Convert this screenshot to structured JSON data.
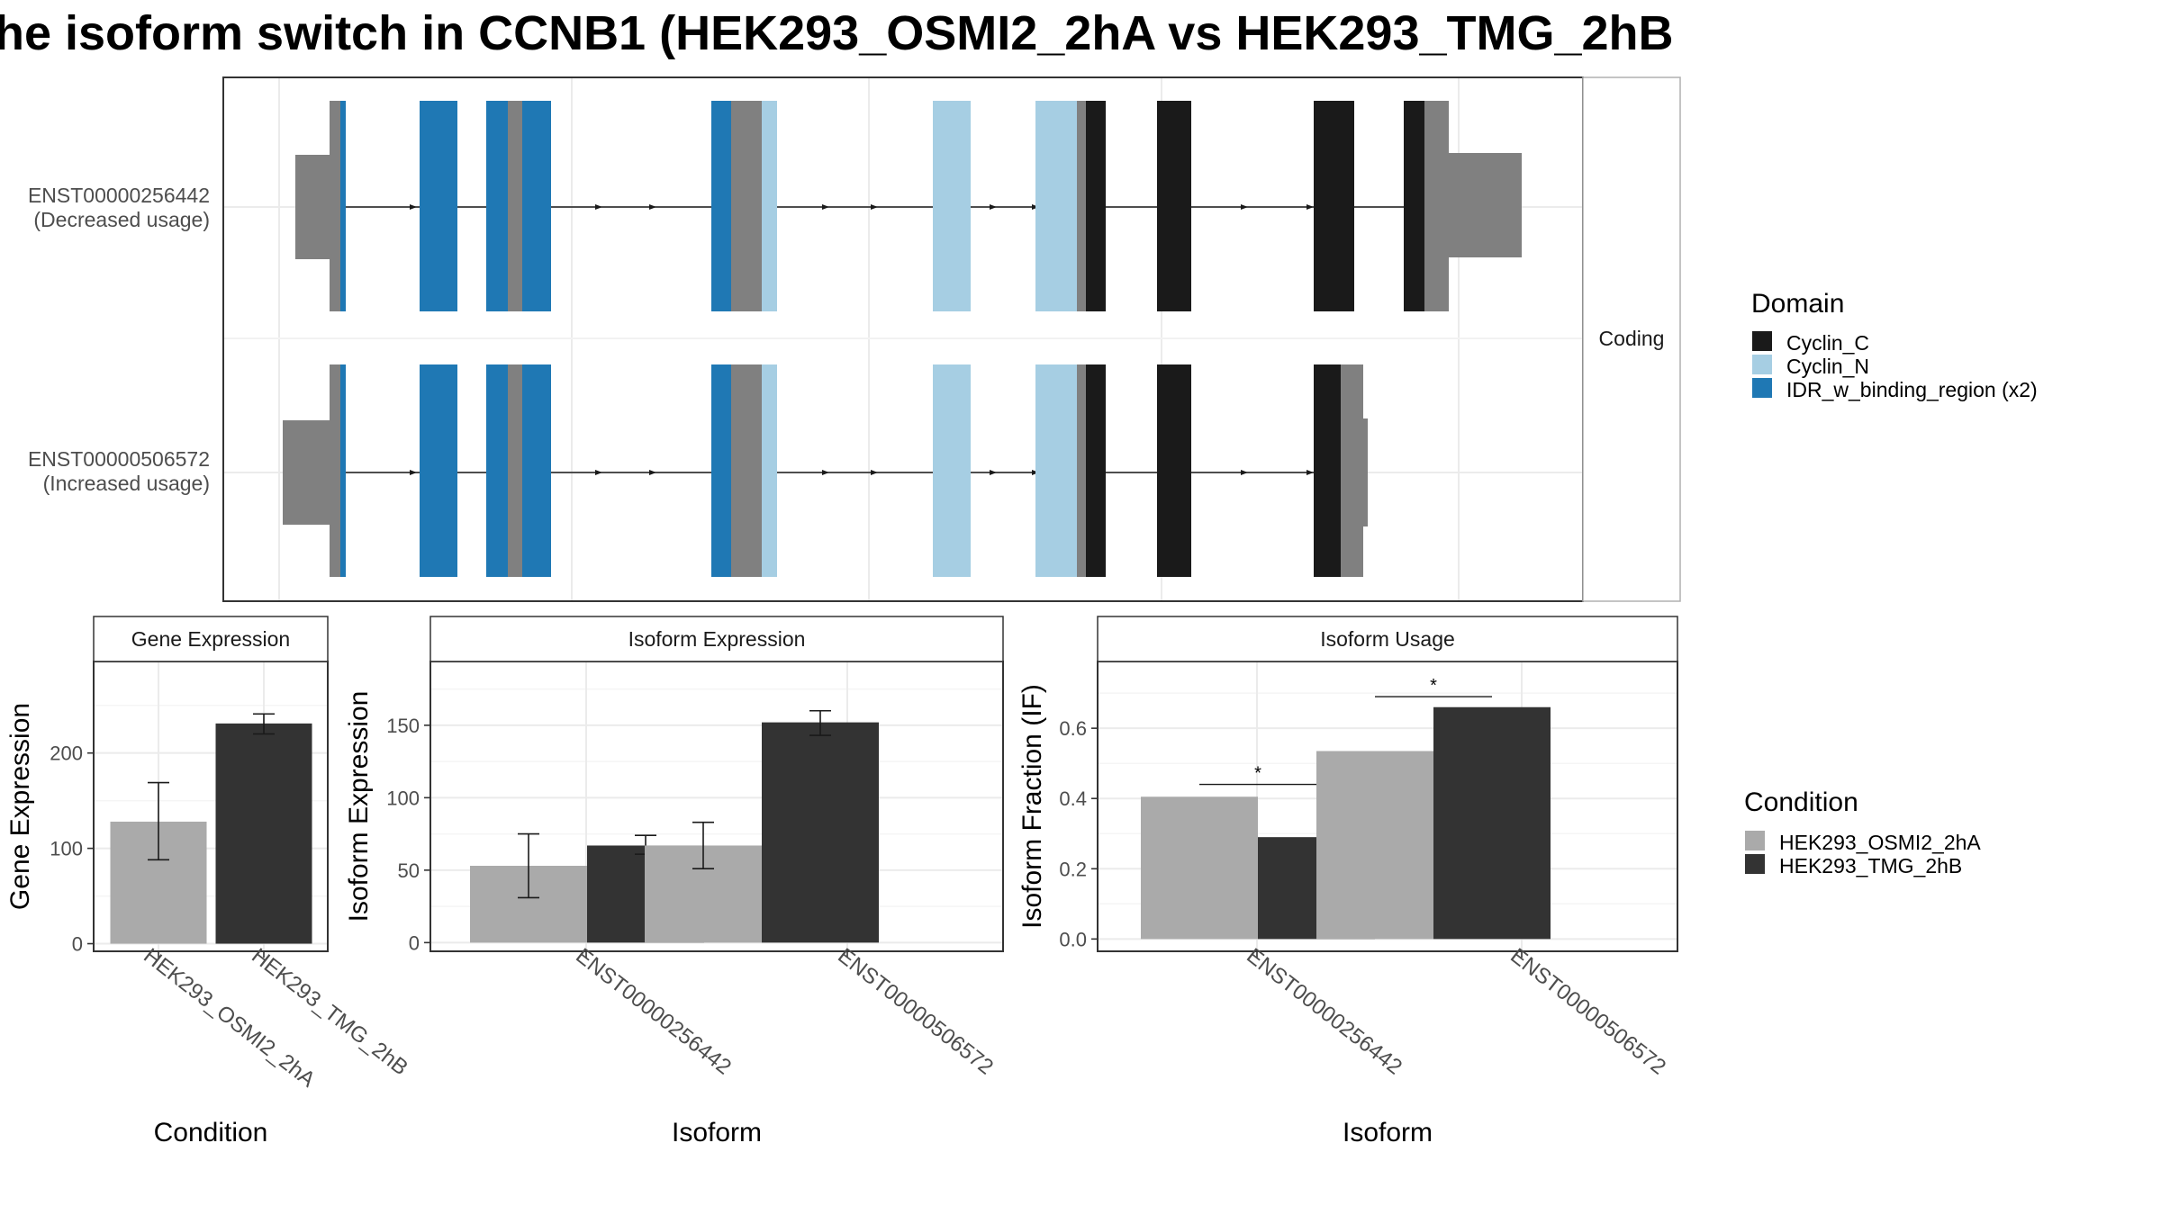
{
  "title": "he isoform switch in CCNB1 (HEK293_OSMI2_2hA vs HEK293_TMG_2hB",
  "colors": {
    "cyclin_c": "#1a1a1a",
    "cyclin_n": "#a6cee3",
    "idr": "#1f78b4",
    "utr": "#808080",
    "cond_a": "#aaaaaa",
    "cond_b": "#333333"
  },
  "structure": {
    "strip_label": "Coding",
    "legend_title": "Domain",
    "legend_items": [
      {
        "label": "Cyclin_C",
        "color": "#1a1a1a"
      },
      {
        "label": "Cyclin_N",
        "color": "#a6cee3"
      },
      {
        "label": "IDR_w_binding_region (x2)",
        "color": "#1f78b4"
      }
    ],
    "transcripts": [
      {
        "id": "ENST00000256442",
        "note": "(Decreased usage)"
      },
      {
        "id": "ENST00000506572",
        "note": "(Increased usage)"
      }
    ]
  },
  "condition_legend": {
    "title": "Condition",
    "items": [
      {
        "label": "HEK293_OSMI2_2hA",
        "color": "#aaaaaa"
      },
      {
        "label": "HEK293_TMG_2hB",
        "color": "#333333"
      }
    ]
  },
  "chart_data": [
    {
      "type": "bar",
      "title": "Gene Expression",
      "xlabel": "Condition",
      "ylabel": "Gene Expression",
      "categories": [
        "HEK293_OSMI2_2hA",
        "HEK293_TMG_2hB"
      ],
      "values": [
        128,
        231
      ],
      "error_low": [
        88,
        220
      ],
      "error_high": [
        169,
        241
      ],
      "ylim": [
        -8,
        296
      ],
      "yticks": [
        0,
        100,
        200
      ],
      "grid": true
    },
    {
      "type": "bar",
      "title": "Isoform Expression",
      "xlabel": "Isoform",
      "ylabel": "Isoform Expression",
      "categories": [
        "ENST00000256442",
        "ENST00000506572"
      ],
      "series": [
        {
          "name": "HEK293_OSMI2_2hA",
          "values": [
            53,
            67
          ],
          "error_low": [
            31,
            51
          ],
          "error_high": [
            75,
            83
          ]
        },
        {
          "name": "HEK293_TMG_2hB",
          "values": [
            67,
            152
          ],
          "error_low": [
            61,
            143
          ],
          "error_high": [
            74,
            160
          ]
        }
      ],
      "ylim": [
        -6,
        194
      ],
      "yticks": [
        0,
        50,
        100,
        150
      ],
      "grid": true
    },
    {
      "type": "bar",
      "title": "Isoform Usage",
      "xlabel": "Isoform",
      "ylabel": "Isoform Fraction (IF)",
      "categories": [
        "ENST00000256442",
        "ENST00000506572"
      ],
      "series": [
        {
          "name": "HEK293_OSMI2_2hA",
          "values": [
            0.405,
            0.535
          ]
        },
        {
          "name": "HEK293_TMG_2hB",
          "values": [
            0.29,
            0.66
          ]
        }
      ],
      "significance": [
        {
          "category": "ENST00000256442",
          "label": "*",
          "y": 0.44
        },
        {
          "category": "ENST00000506572",
          "label": "*",
          "y": 0.69
        }
      ],
      "ylim": [
        -0.035,
        0.79
      ],
      "yticks": [
        "0.0",
        "0.2",
        "0.4",
        "0.6"
      ],
      "grid": true
    }
  ]
}
